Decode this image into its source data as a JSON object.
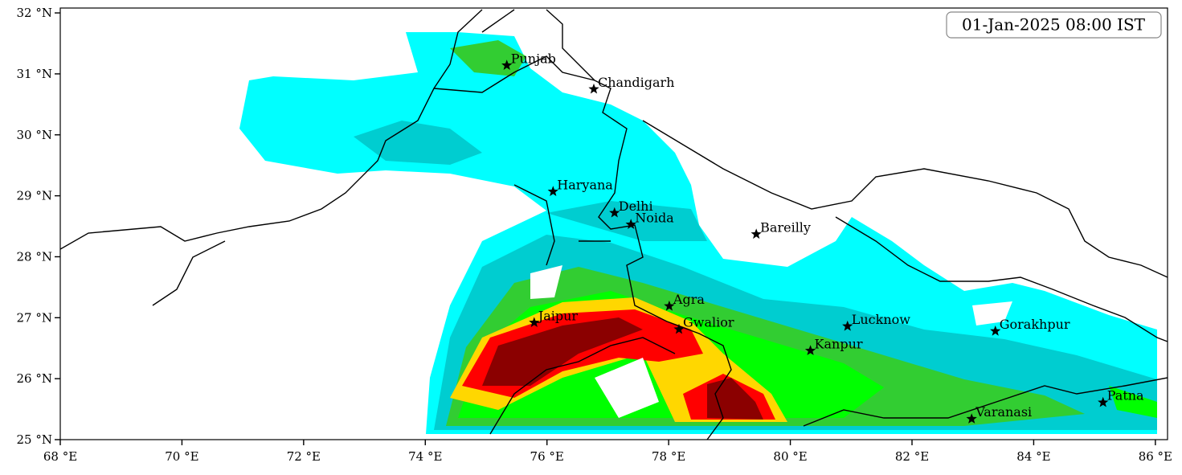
{
  "timestamp": "01-Jan-2025 08:00 IST",
  "map": {
    "xlim": [
      68,
      86.2
    ],
    "ylim": [
      25,
      32.08
    ],
    "xticks": [
      {
        "value": 68,
        "label": "68 °E"
      },
      {
        "value": 70,
        "label": "70 °E"
      },
      {
        "value": 72,
        "label": "72 °E"
      },
      {
        "value": 74,
        "label": "74 °E"
      },
      {
        "value": 76,
        "label": "76 °E"
      },
      {
        "value": 78,
        "label": "78 °E"
      },
      {
        "value": 80,
        "label": "80 °E"
      },
      {
        "value": 82,
        "label": "82 °E"
      },
      {
        "value": 84,
        "label": "84 °E"
      },
      {
        "value": 86,
        "label": "86 °E"
      }
    ],
    "yticks": [
      {
        "value": 25,
        "label": "25 °N"
      },
      {
        "value": 26,
        "label": "26 °N"
      },
      {
        "value": 27,
        "label": "27 °N"
      },
      {
        "value": 28,
        "label": "28 °N"
      },
      {
        "value": 29,
        "label": "29 °N"
      },
      {
        "value": 30,
        "label": "30 °N"
      },
      {
        "value": 31,
        "label": "31 °N"
      },
      {
        "value": 32,
        "label": "32 °N"
      }
    ]
  },
  "cities": [
    {
      "name": "Punjab",
      "lon": 75.34,
      "lat": 31.14
    },
    {
      "name": "Chandigarh",
      "lon": 76.77,
      "lat": 30.75
    },
    {
      "name": "Haryana",
      "lon": 76.1,
      "lat": 29.07
    },
    {
      "name": "Delhi",
      "lon": 77.11,
      "lat": 28.72
    },
    {
      "name": "Noida",
      "lon": 77.38,
      "lat": 28.53
    },
    {
      "name": "Bareilly",
      "lon": 79.44,
      "lat": 28.37
    },
    {
      "name": "Agra",
      "lon": 78.01,
      "lat": 27.19
    },
    {
      "name": "Jaipur",
      "lon": 75.79,
      "lat": 26.92
    },
    {
      "name": "Gwalior",
      "lon": 78.17,
      "lat": 26.81
    },
    {
      "name": "Lucknow",
      "lon": 80.94,
      "lat": 26.86
    },
    {
      "name": "Kanpur",
      "lon": 80.33,
      "lat": 26.46
    },
    {
      "name": "Gorakhpur",
      "lon": 83.37,
      "lat": 26.78
    },
    {
      "name": "Varanasi",
      "lon": 82.98,
      "lat": 25.34
    },
    {
      "name": "Patna",
      "lon": 85.14,
      "lat": 25.61
    }
  ]
}
